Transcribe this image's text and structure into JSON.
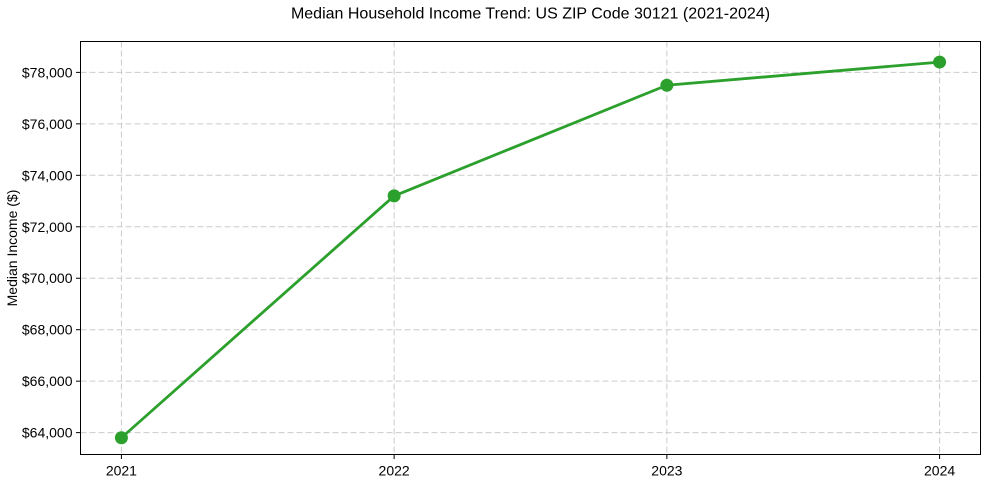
{
  "chart_data": {
    "type": "line",
    "title": "Median Household Income Trend: US ZIP Code 30121 (2021-2024)",
    "xlabel": "",
    "ylabel": "Median Income ($)",
    "x": [
      2021,
      2022,
      2023,
      2024
    ],
    "values": [
      63800,
      73200,
      77500,
      78400
    ],
    "xticks": [
      {
        "value": 2021,
        "label": "2021"
      },
      {
        "value": 2022,
        "label": "2022"
      },
      {
        "value": 2023,
        "label": "2023"
      },
      {
        "value": 2024,
        "label": "2024"
      }
    ],
    "yticks": [
      {
        "value": 64000,
        "label": "$64,000"
      },
      {
        "value": 66000,
        "label": "$66,000"
      },
      {
        "value": 68000,
        "label": "$68,000"
      },
      {
        "value": 70000,
        "label": "$70,000"
      },
      {
        "value": 72000,
        "label": "$72,000"
      },
      {
        "value": 74000,
        "label": "$74,000"
      },
      {
        "value": 76000,
        "label": "$76,000"
      },
      {
        "value": 78000,
        "label": "$78,000"
      }
    ],
    "xlim": [
      2020.85,
      2024.15
    ],
    "ylim": [
      63150,
      79200
    ],
    "grid": true,
    "grid_style": "dashed",
    "legend": "none",
    "marker": "circle",
    "colors": {
      "line": "#2ca02c",
      "marker": "#2ca02c",
      "grid": "#cccccc",
      "axis": "#000000",
      "text": "#000000",
      "background": "#ffffff"
    }
  }
}
